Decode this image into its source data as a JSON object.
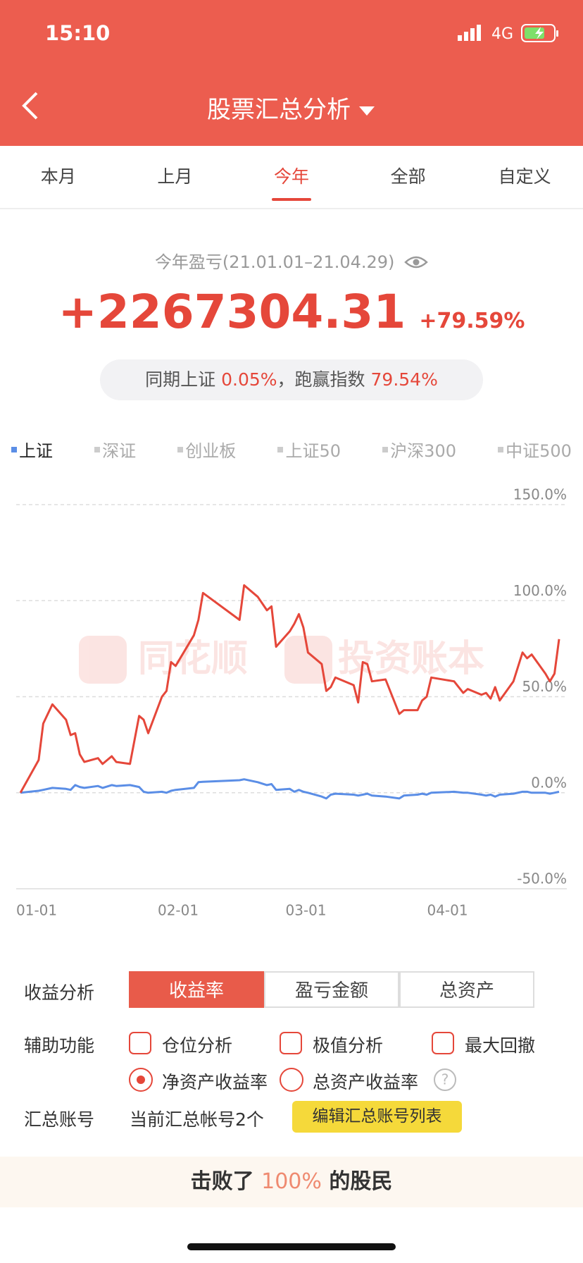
{
  "status_bar": {
    "time": "15:10",
    "network": "4G"
  },
  "nav": {
    "title": "股票汇总分析"
  },
  "tabs": {
    "items": [
      "本月",
      "上月",
      "今年",
      "全部",
      "自定义"
    ],
    "active": 2
  },
  "summary": {
    "label": "今年盈亏(21.01.01–21.04.29)",
    "profit": "+2267304.31",
    "return": "+79.59%",
    "benchmark_label": "同期上证",
    "benchmark_return": "0.05%",
    "beat_label": "，跑赢指数",
    "beat_value": "79.54%"
  },
  "index_legend": {
    "items": [
      "深证",
      "创业板",
      "上证50",
      "沪深300",
      "中证500"
    ]
  },
  "watermark": [
    "同花顺",
    "投资账本"
  ],
  "chart_data": {
    "type": "line",
    "x": [
      "01-01",
      "01-05",
      "01-06",
      "01-08",
      "01-11",
      "01-12",
      "01-13",
      "01-14",
      "01-15",
      "01-18",
      "01-19",
      "01-21",
      "01-22",
      "01-25",
      "01-27",
      "01-28",
      "01-29",
      "02-01",
      "02-02",
      "02-03",
      "02-04",
      "02-08",
      "02-09",
      "02-10",
      "02-18",
      "02-19",
      "02-22",
      "02-24",
      "02-25",
      "02-26",
      "03-01",
      "03-02",
      "03-03",
      "03-04",
      "03-05",
      "03-08",
      "03-09",
      "03-10",
      "03-11",
      "03-15",
      "03-16",
      "03-17",
      "03-18",
      "03-19",
      "03-22",
      "03-25",
      "03-26",
      "03-29",
      "03-30",
      "03-31",
      "04-01",
      "04-06",
      "04-08",
      "04-09",
      "04-12",
      "04-13",
      "04-14",
      "04-15",
      "04-16",
      "04-19",
      "04-21",
      "04-22",
      "04-23",
      "04-26",
      "04-27",
      "04-28",
      "04-29"
    ],
    "series": [
      {
        "color": "#e5473a",
        "values": [
          0,
          17,
          36,
          46,
          38,
          30,
          31,
          20,
          16,
          18,
          15,
          19,
          16,
          15,
          40,
          38,
          31,
          50,
          53,
          68,
          66,
          82,
          90,
          104,
          90,
          108,
          102,
          95,
          97,
          76,
          84,
          88,
          93,
          86,
          73,
          67,
          53,
          55,
          60,
          56,
          47,
          68,
          67,
          58,
          59,
          41,
          43,
          43,
          48,
          50,
          60,
          58,
          52,
          54,
          51,
          52,
          49,
          55,
          48,
          58,
          73,
          70,
          72,
          62,
          58,
          62,
          80
        ]
      },
      {
        "name": "上证",
        "color": "#5b8ee6",
        "values": [
          0,
          1,
          1.5,
          2.5,
          2,
          1.5,
          4,
          3,
          2.5,
          3.5,
          2.5,
          4,
          3.5,
          4,
          3,
          0.5,
          0,
          0.5,
          0,
          1,
          1.5,
          2.5,
          5.5,
          5.7,
          6.5,
          7,
          5.5,
          4,
          4.5,
          1.5,
          2,
          0.5,
          1.5,
          0.5,
          0,
          -2,
          -3,
          -1,
          -0.5,
          -1,
          -1.5,
          -1,
          -0.5,
          -1.5,
          -2,
          -3,
          -1.5,
          -1,
          -0.5,
          -1,
          0,
          0.5,
          0,
          0,
          -1,
          -1.5,
          -1,
          -2,
          -1,
          -0.5,
          0.5,
          0.5,
          0,
          0,
          -0.5,
          0,
          0.5
        ]
      }
    ],
    "xlim": [
      "01-01",
      "04-29"
    ],
    "xticks": [
      "01-01",
      "02-01",
      "03-01",
      "04-01"
    ],
    "ylim": [
      -50,
      150
    ],
    "yticks": [
      {
        "value": 150,
        "label": "150.0%"
      },
      {
        "value": 100,
        "label": "100.0%"
      },
      {
        "value": 50,
        "label": "50.0%"
      },
      {
        "value": 0,
        "label": "0.0%"
      },
      {
        "value": -50,
        "label": "-50.0%"
      }
    ],
    "grid": true
  },
  "controls": {
    "analysis_label": "收益分析",
    "analysis_options": [
      "收益率",
      "盈亏金额",
      "总资产"
    ],
    "analysis_active": 0,
    "aux_label": "辅助功能",
    "aux_checks": [
      "仓位分析",
      "极值分析",
      "最大回撤"
    ],
    "aux_radios": [
      "净资产收益率",
      "总资产收益率"
    ],
    "radio_active": 0,
    "account_label": "汇总账号",
    "account_info": "当前汇总帐号2个",
    "account_button": "编辑汇总账号列表"
  },
  "footer": {
    "prefix": "击败了",
    "value": "100%",
    "suffix": "的股民"
  }
}
